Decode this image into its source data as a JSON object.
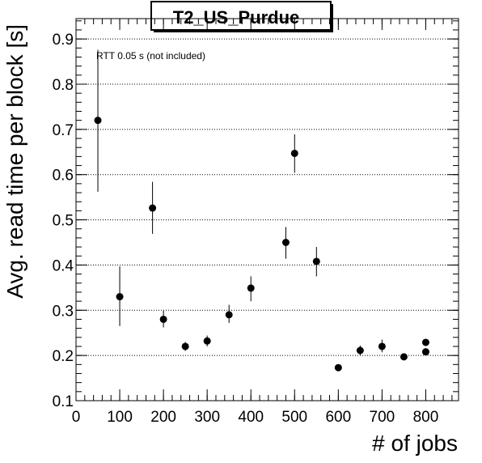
{
  "chart_data": {
    "type": "scatter",
    "title": "T2_US_Purdue",
    "xlabel": "# of jobs",
    "ylabel": "Avg. read time per block [s]",
    "annotation": "RTT 0.05 s (not included)",
    "xlim": [
      0,
      875
    ],
    "ylim": [
      0.1,
      0.945
    ],
    "x_ticks": [
      0,
      100,
      200,
      300,
      400,
      500,
      600,
      700,
      800
    ],
    "y_ticks": [
      0.1,
      0.2,
      0.3,
      0.4,
      0.5,
      0.6,
      0.7,
      0.8,
      0.9
    ],
    "y_tick_labels": [
      "0.1",
      "0.2",
      "0.3",
      "0.4",
      "0.5",
      "0.6",
      "0.7",
      "0.8",
      "0.9"
    ],
    "grid": "horizontal",
    "series": [
      {
        "points": [
          {
            "x": 50,
            "y": 0.72,
            "ylow": 0.562,
            "yhigh": 0.876
          },
          {
            "x": 100,
            "y": 0.33,
            "ylow": 0.265,
            "yhigh": 0.397
          },
          {
            "x": 175,
            "y": 0.526,
            "ylow": 0.469,
            "yhigh": 0.584
          },
          {
            "x": 200,
            "y": 0.28,
            "ylow": 0.262,
            "yhigh": 0.299
          },
          {
            "x": 250,
            "y": 0.22,
            "ylow": 0.21,
            "yhigh": 0.23
          },
          {
            "x": 300,
            "y": 0.232,
            "ylow": 0.22,
            "yhigh": 0.244
          },
          {
            "x": 350,
            "y": 0.29,
            "ylow": 0.272,
            "yhigh": 0.312
          },
          {
            "x": 400,
            "y": 0.349,
            "ylow": 0.32,
            "yhigh": 0.375
          },
          {
            "x": 480,
            "y": 0.45,
            "ylow": 0.414,
            "yhigh": 0.484
          },
          {
            "x": 500,
            "y": 0.647,
            "ylow": 0.604,
            "yhigh": 0.689
          },
          {
            "x": 550,
            "y": 0.408,
            "ylow": 0.375,
            "yhigh": 0.44
          },
          {
            "x": 600,
            "y": 0.173,
            "ylow": 0.168,
            "yhigh": 0.178
          },
          {
            "x": 650,
            "y": 0.211,
            "ylow": 0.2,
            "yhigh": 0.222
          },
          {
            "x": 700,
            "y": 0.22,
            "ylow": 0.207,
            "yhigh": 0.235
          },
          {
            "x": 750,
            "y": 0.197,
            "ylow": 0.19,
            "yhigh": 0.203
          },
          {
            "x": 800,
            "y": 0.229,
            "ylow": 0.222,
            "yhigh": 0.236
          },
          {
            "x": 800,
            "y": 0.208,
            "ylow": 0.201,
            "yhigh": 0.215
          }
        ]
      }
    ]
  }
}
